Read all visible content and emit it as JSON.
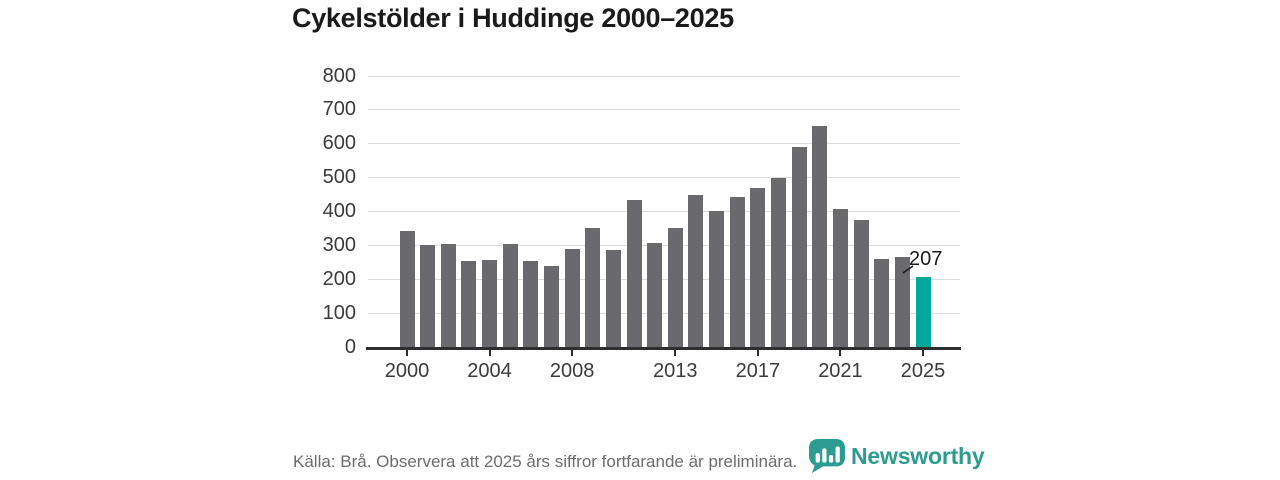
{
  "header": {
    "title": "Cykelstölder i Huddinge 2000–2025"
  },
  "chart_data": {
    "type": "bar",
    "title": "Cykelstölder i Huddinge 2000–2025",
    "x": [
      2000,
      2001,
      2002,
      2003,
      2004,
      2005,
      2006,
      2007,
      2008,
      2009,
      2010,
      2011,
      2012,
      2013,
      2014,
      2015,
      2016,
      2017,
      2018,
      2019,
      2020,
      2021,
      2022,
      2023,
      2024,
      2025
    ],
    "values": [
      341,
      301,
      303,
      254,
      256,
      304,
      252,
      239,
      289,
      352,
      285,
      434,
      306,
      350,
      447,
      401,
      441,
      469,
      498,
      588,
      652,
      408,
      373,
      259,
      265,
      207
    ],
    "xlabel": "",
    "ylabel": "",
    "ylim": [
      0,
      800
    ],
    "yticks": [
      0,
      100,
      200,
      300,
      400,
      500,
      600,
      700,
      800
    ],
    "xtick_years": [
      2000,
      2004,
      2008,
      2013,
      2017,
      2021,
      2025
    ],
    "xtick_labels": [
      "2000",
      "2004",
      "2008",
      "2013",
      "2017",
      "2021",
      "2025"
    ],
    "grid": "horizontal",
    "legend_position": "none",
    "bar_color": "#6a6a6e",
    "highlight_color": "#00a89c",
    "highlight_year": 2025,
    "annotation": {
      "text": "207",
      "year": 2025,
      "value": 207
    }
  },
  "footer": {
    "source_note": "Källa: Brå. Observera att 2025 års siffror fortfarande är preliminära.",
    "logo": {
      "text": "Newsworthy",
      "icon": "newsworthy-bar-chart-bubble-icon",
      "color": "#2c9c90"
    }
  }
}
